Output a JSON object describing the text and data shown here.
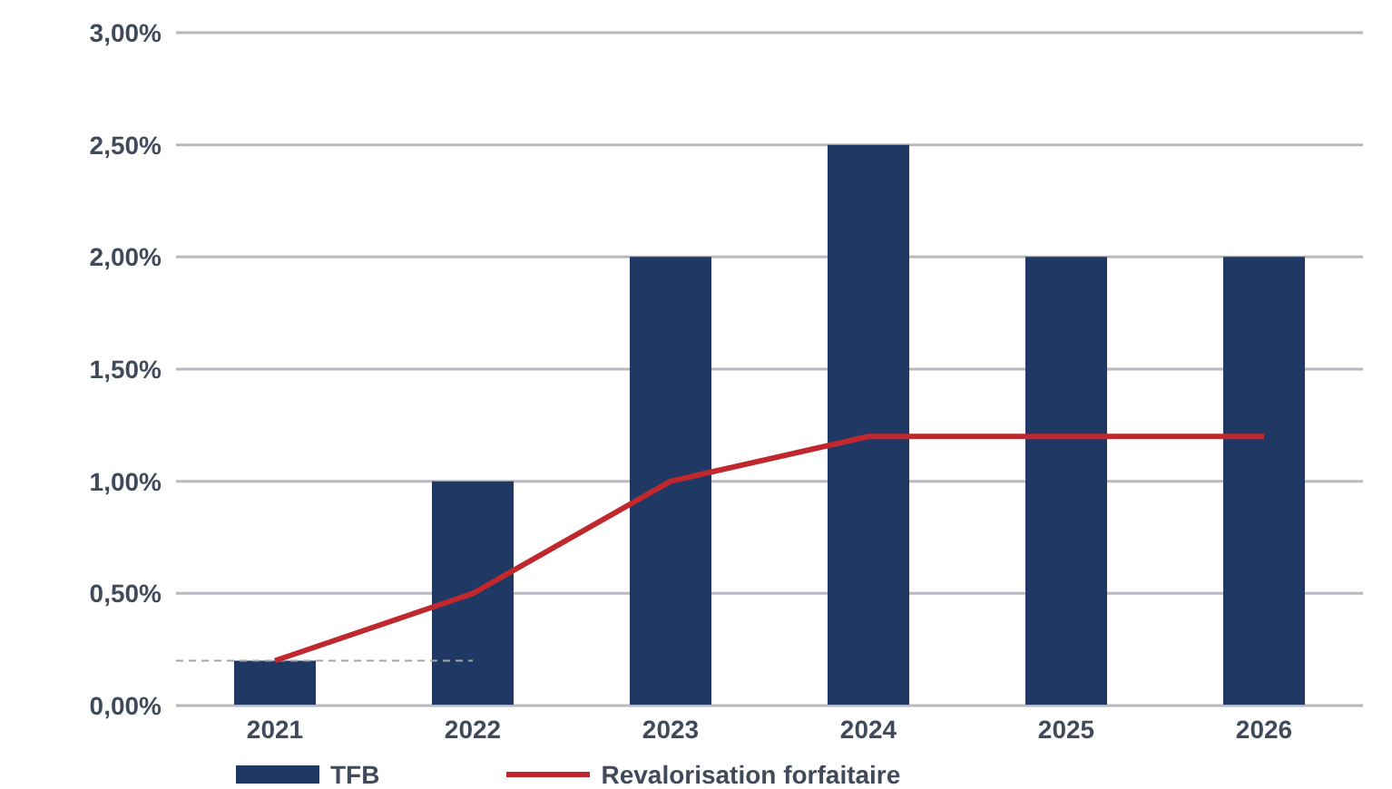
{
  "chart_data": {
    "type": "bar",
    "categories": [
      "2021",
      "2022",
      "2023",
      "2024",
      "2025",
      "2026"
    ],
    "series": [
      {
        "name": "TFB",
        "color": "#1f3864",
        "values": [
          0.2,
          1.0,
          2.0,
          2.5,
          2.0,
          2.0
        ]
      },
      {
        "name": "Revalorisation forfaitaire",
        "type": "line",
        "color": "#c0282d",
        "values": [
          0.2,
          0.5,
          1.0,
          1.2,
          1.2,
          1.2
        ]
      }
    ],
    "ylim": [
      0,
      3
    ],
    "yticks": [
      {
        "value": 0,
        "label": "0,00%"
      },
      {
        "value": 0.5,
        "label": "0,50%"
      },
      {
        "value": 1,
        "label": "1,00%"
      },
      {
        "value": 1.5,
        "label": "1,50%"
      },
      {
        "value": 2,
        "label": "2,00%"
      },
      {
        "value": 2.5,
        "label": "2,50%"
      },
      {
        "value": 3,
        "label": "3,00%"
      }
    ],
    "ref_lines": [
      {
        "axis": "y",
        "value": 0.2,
        "color": "#a6a6a6",
        "line_style": "dashed"
      }
    ],
    "grid": "y",
    "legend": "bottom",
    "marker": "none",
    "line_style": "solid"
  }
}
